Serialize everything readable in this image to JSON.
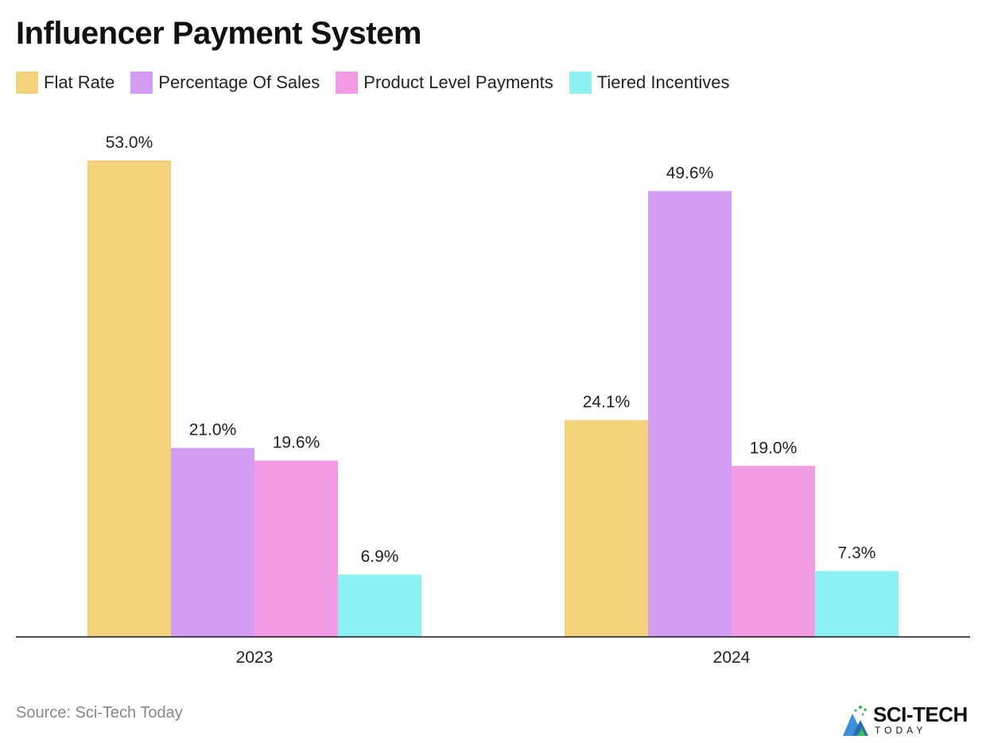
{
  "title": "Influencer Payment System",
  "source": "Source: Sci-Tech Today",
  "logo": {
    "word": "SCI-TECH",
    "sub": "TODAY"
  },
  "chart_data": {
    "type": "bar",
    "title": "Influencer Payment System",
    "categories": [
      "2023",
      "2024"
    ],
    "series": [
      {
        "name": "Flat Rate",
        "color": "#F2D27A",
        "values": [
          53.0,
          24.1
        ],
        "labels": [
          "53.0%",
          "24.1%"
        ]
      },
      {
        "name": "Percentage Of Sales",
        "color": "#D49CF2",
        "values": [
          21.0,
          49.6
        ],
        "labels": [
          "21.0%",
          "49.6%"
        ]
      },
      {
        "name": "Product Level Payments",
        "color": "#F49BE6",
        "values": [
          19.6,
          19.0
        ],
        "labels": [
          "19.6%",
          "19.0%"
        ]
      },
      {
        "name": "Tiered Incentives",
        "color": "#8EF2F5",
        "values": [
          6.9,
          7.3
        ],
        "labels": [
          "6.9%",
          "7.3%"
        ]
      }
    ],
    "ylim": [
      0,
      53
    ],
    "grid": false,
    "legend_position": "top-left",
    "xlabel": "",
    "ylabel": ""
  }
}
